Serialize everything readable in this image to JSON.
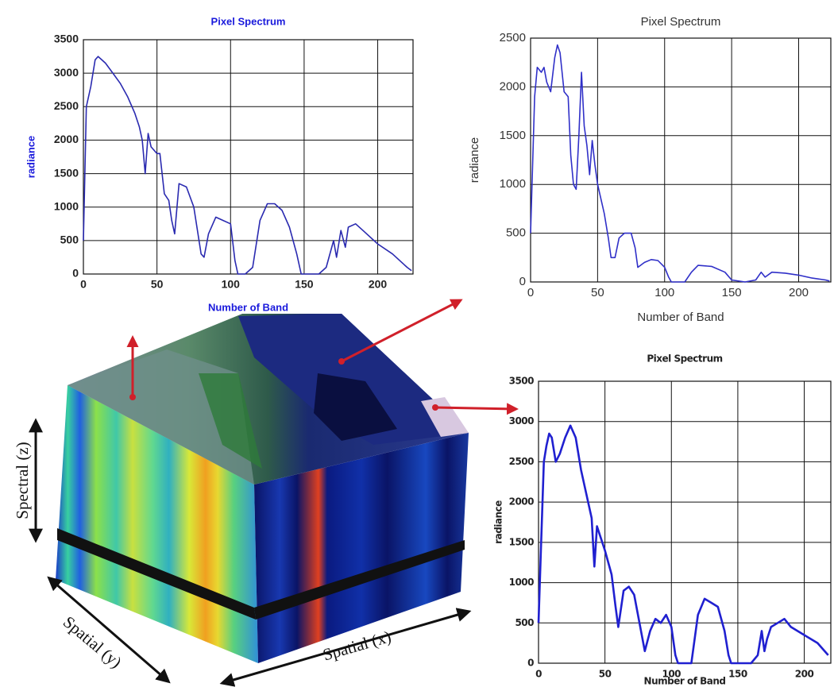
{
  "chart_data": [
    {
      "type": "line",
      "title": "Pixel Spectrum",
      "x_label": "Number of Band",
      "y_label": "radiance",
      "color": "#2a2ab0",
      "grid": true,
      "xlim": [
        0,
        224
      ],
      "xticks": [
        0,
        50,
        100,
        150,
        200
      ],
      "ylim": [
        0,
        3500
      ],
      "yticks": [
        0,
        500,
        1000,
        1500,
        2000,
        2500,
        3000,
        3500
      ],
      "x": [
        0,
        2,
        5,
        8,
        10,
        15,
        20,
        25,
        30,
        35,
        38,
        40,
        42,
        44,
        46,
        50,
        52,
        55,
        58,
        60,
        62,
        65,
        70,
        75,
        80,
        82,
        85,
        90,
        95,
        100,
        103,
        105,
        110,
        115,
        120,
        125,
        130,
        135,
        140,
        145,
        148,
        155,
        160,
        165,
        170,
        172,
        175,
        178,
        180,
        185,
        190,
        200,
        210,
        220,
        223
      ],
      "values": [
        500,
        2500,
        2800,
        3200,
        3250,
        3150,
        3000,
        2850,
        2650,
        2400,
        2200,
        2000,
        1500,
        2100,
        1900,
        1800,
        1800,
        1200,
        1100,
        800,
        600,
        1350,
        1300,
        1000,
        300,
        250,
        600,
        850,
        800,
        750,
        200,
        0,
        0,
        100,
        800,
        1050,
        1050,
        950,
        700,
        300,
        0,
        0,
        0,
        100,
        500,
        250,
        650,
        400,
        700,
        750,
        650,
        450,
        300,
        100,
        50
      ]
    },
    {
      "type": "line",
      "title": "Pixel Spectrum",
      "x_label": "Number of Band",
      "y_label": "radiance",
      "color": "#3030c8",
      "grid": true,
      "xlim": [
        0,
        224
      ],
      "xticks": [
        0,
        50,
        100,
        150,
        200
      ],
      "ylim": [
        0,
        2500
      ],
      "yticks": [
        0,
        500,
        1000,
        1500,
        2000,
        2500
      ],
      "x": [
        0,
        3,
        5,
        8,
        10,
        12,
        15,
        18,
        20,
        22,
        25,
        28,
        30,
        32,
        34,
        36,
        38,
        40,
        42,
        44,
        46,
        48,
        50,
        55,
        58,
        60,
        63,
        66,
        70,
        75,
        78,
        80,
        85,
        90,
        95,
        100,
        103,
        105,
        115,
        120,
        125,
        135,
        145,
        150,
        160,
        168,
        172,
        175,
        180,
        190,
        200,
        210,
        220,
        223
      ],
      "values": [
        500,
        1900,
        2200,
        2150,
        2200,
        2050,
        1950,
        2300,
        2430,
        2350,
        1950,
        1900,
        1300,
        1000,
        950,
        1500,
        2150,
        1600,
        1400,
        1100,
        1450,
        1200,
        1000,
        700,
        450,
        250,
        250,
        450,
        500,
        500,
        350,
        150,
        200,
        230,
        220,
        150,
        50,
        0,
        0,
        100,
        170,
        160,
        100,
        20,
        0,
        20,
        100,
        50,
        100,
        90,
        70,
        40,
        20,
        10
      ]
    },
    {
      "type": "line",
      "title": "Pixel Spectrum",
      "x_label": "Number of Band",
      "y_label": "radiance",
      "color": "#2020d0",
      "grid": true,
      "xlim": [
        0,
        220
      ],
      "xticks": [
        0,
        50,
        100,
        150,
        200
      ],
      "ylim": [
        0,
        3500
      ],
      "yticks": [
        0,
        500,
        1000,
        1500,
        2000,
        2500,
        3000,
        3500
      ],
      "x": [
        0,
        2,
        4,
        6,
        8,
        10,
        13,
        16,
        20,
        24,
        28,
        32,
        36,
        40,
        42,
        44,
        46,
        50,
        55,
        58,
        60,
        64,
        68,
        72,
        76,
        80,
        84,
        88,
        92,
        96,
        100,
        103,
        105,
        115,
        120,
        125,
        130,
        135,
        140,
        143,
        145,
        160,
        165,
        168,
        170,
        172,
        175,
        180,
        185,
        190,
        200,
        210,
        218
      ],
      "values": [
        500,
        1500,
        2500,
        2700,
        2850,
        2800,
        2500,
        2600,
        2800,
        2950,
        2800,
        2400,
        2100,
        1800,
        1200,
        1700,
        1600,
        1400,
        1100,
        700,
        450,
        900,
        950,
        850,
        500,
        150,
        400,
        550,
        500,
        600,
        450,
        100,
        0,
        0,
        600,
        800,
        750,
        700,
        400,
        100,
        0,
        0,
        100,
        400,
        150,
        300,
        450,
        500,
        550,
        450,
        350,
        250,
        100
      ]
    }
  ],
  "cube": {
    "spectral": "Spectral (z)",
    "spatial_y": "Spatial (y)",
    "spatial_x": "Spatial (x)"
  }
}
